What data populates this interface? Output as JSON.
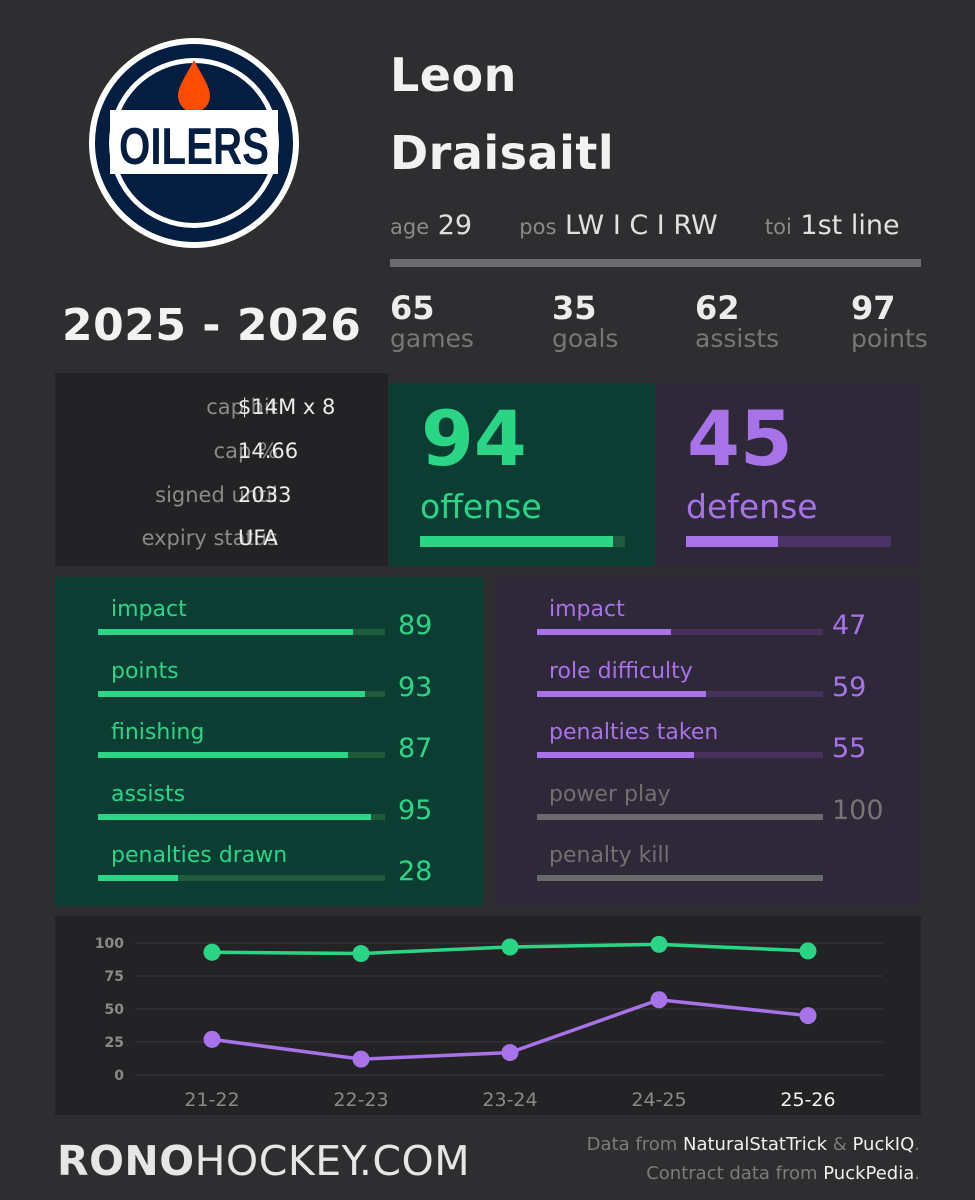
{
  "team": {
    "logo_text": "OILERS",
    "colors": {
      "navy": "#041e42",
      "orange": "#fc4c02"
    }
  },
  "player": {
    "first_name": "Leon",
    "last_name": "Draisaitl",
    "age_label": "age",
    "age": "29",
    "pos_label": "pos",
    "pos": "LW I C I RW",
    "toi_label": "toi",
    "toi": "1st line"
  },
  "season": "2025 - 2026",
  "stats": [
    {
      "value": "65",
      "label": "games"
    },
    {
      "value": "35",
      "label": "goals"
    },
    {
      "value": "62",
      "label": "assists"
    },
    {
      "value": "97",
      "label": "points"
    }
  ],
  "contract": [
    {
      "label": "cap hit",
      "value": "$14M x 8"
    },
    {
      "label": "cap %",
      "value": "14.66"
    },
    {
      "label": "signed until",
      "value": "2033"
    },
    {
      "label": "expiry status",
      "value": "UFA"
    }
  ],
  "offense": {
    "value": "94",
    "label": "offense",
    "pct": 94,
    "color": "#2ad686"
  },
  "defense": {
    "value": "45",
    "label": "defense",
    "pct": 45,
    "color": "#a873e8"
  },
  "offense_metrics": [
    {
      "label": "impact",
      "value": "89",
      "pct": 89
    },
    {
      "label": "points",
      "value": "93",
      "pct": 93
    },
    {
      "label": "finishing",
      "value": "87",
      "pct": 87
    },
    {
      "label": "assists",
      "value": "95",
      "pct": 95
    },
    {
      "label": "penalties drawn",
      "value": "28",
      "pct": 28
    }
  ],
  "defense_metrics": [
    {
      "label": "impact",
      "value": "47",
      "pct": 47,
      "active": true
    },
    {
      "label": "role difficulty",
      "value": "59",
      "pct": 59,
      "active": true
    },
    {
      "label": "penalties taken",
      "value": "55",
      "pct": 55,
      "active": true
    },
    {
      "label": "power play",
      "value": "100",
      "pct": 100,
      "active": false
    },
    {
      "label": "penalty kill",
      "value": "",
      "pct": 100,
      "active": false
    }
  ],
  "chart_data": {
    "type": "line",
    "title": "",
    "xlabel": "",
    "ylabel": "",
    "categories": [
      "21-22",
      "22-23",
      "23-24",
      "24-25",
      "25-26"
    ],
    "highlighted_category": "25-26",
    "yticks": [
      0,
      25,
      50,
      75,
      100
    ],
    "ylim": [
      0,
      100
    ],
    "grid": true,
    "series": [
      {
        "name": "offense",
        "color": "#2ad686",
        "values": [
          93,
          92,
          97,
          99,
          94
        ]
      },
      {
        "name": "defense",
        "color": "#a873e8",
        "values": [
          27,
          12,
          17,
          57,
          45
        ]
      }
    ]
  },
  "footer": {
    "brand_bold": "RONO",
    "brand_rest": "HOCKEY.COM",
    "line1_prefix": "Data from ",
    "line1_src1": "NaturalStatTrick",
    "line1_mid": " & ",
    "line1_src2": "PuckIQ",
    "line1_end": ".",
    "line2_prefix": "Contract data from ",
    "line2_src": "PuckPedia",
    "line2_end": "."
  }
}
